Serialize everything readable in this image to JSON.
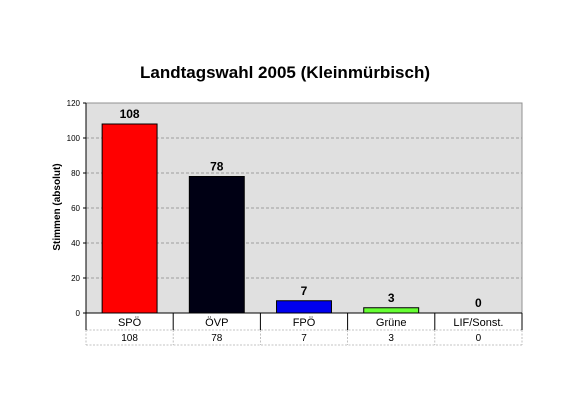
{
  "chart_data": {
    "type": "bar",
    "title": "Landtagswahl 2005 (Kleinmürbisch)",
    "ylabel": "Stimmen (absolut)",
    "xlabel": "",
    "ylim": [
      0,
      120
    ],
    "yticks": [
      0,
      20,
      40,
      60,
      80,
      100,
      120
    ],
    "grid": true,
    "legend": "none",
    "categories": [
      "SPÖ",
      "ÖVP",
      "FPÖ",
      "Grüne",
      "LIF/Sonst."
    ],
    "values": [
      108,
      78,
      7,
      3,
      0
    ],
    "data_labels": [
      "108",
      "78",
      "7",
      "3",
      "0"
    ],
    "table_values": [
      "108",
      "78",
      "7",
      "3",
      "0"
    ],
    "colors": [
      "#ff0000",
      "#000014",
      "#0000ee",
      "#66ff33",
      "#808080"
    ],
    "plot_background": "#e0e0e0",
    "grid_color": "#888888"
  }
}
